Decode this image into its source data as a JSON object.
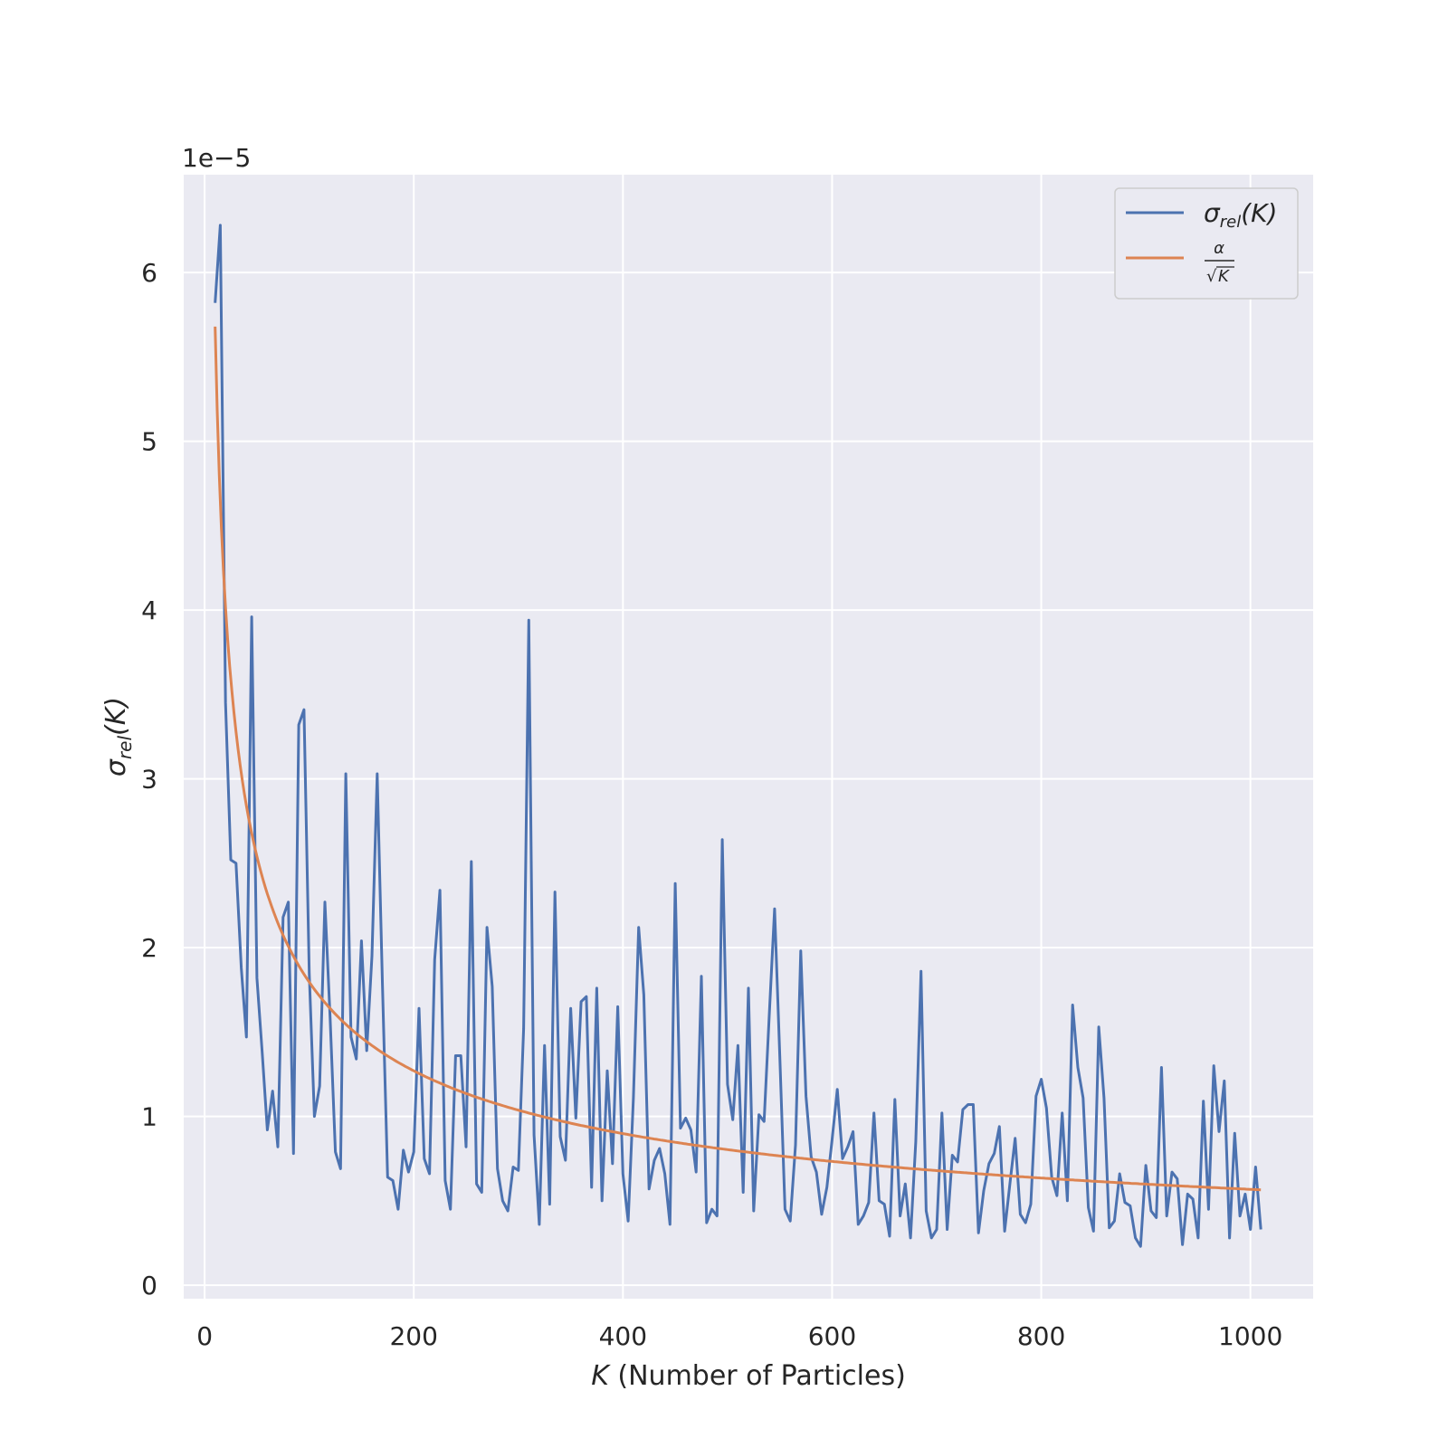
{
  "chart_data": {
    "type": "line",
    "title": "",
    "xlabel_symbol": "K",
    "xlabel_text": " (Number of Particles)",
    "ylabel_symbol": "σ",
    "ylabel_sub": "rel",
    "ylabel_arg": "(K)",
    "y_offset_label": "1e−5",
    "xlim": [
      -20,
      1060
    ],
    "ylim": [
      -0.08,
      6.58
    ],
    "xticks": [
      0,
      200,
      400,
      600,
      800,
      1000
    ],
    "xtick_labels": [
      "0",
      "200",
      "400",
      "600",
      "800",
      "1000"
    ],
    "yticks": [
      0,
      1,
      2,
      3,
      4,
      5,
      6
    ],
    "ytick_labels": [
      "0",
      "1",
      "2",
      "3",
      "4",
      "5",
      "6"
    ],
    "grid": true,
    "legend_position": "top-right",
    "colors": {
      "series_1": "#4c72b0",
      "series_2": "#dd8452",
      "plot_bg": "#eaeaf2",
      "grid": "#ffffff"
    },
    "series": [
      {
        "name_symbol": "σ",
        "name_sub": "rel",
        "name_arg": "(K)",
        "color": "#4c72b0",
        "x": [
          10,
          15,
          20,
          25,
          30,
          35,
          40,
          45,
          50,
          55,
          60,
          65,
          70,
          75,
          80,
          85,
          90,
          95,
          100,
          105,
          110,
          115,
          120,
          125,
          130,
          135,
          140,
          145,
          150,
          155,
          160,
          165,
          170,
          175,
          180,
          185,
          190,
          195,
          200,
          205,
          210,
          215,
          220,
          225,
          230,
          235,
          240,
          245,
          250,
          255,
          260,
          265,
          270,
          275,
          280,
          285,
          290,
          295,
          300,
          305,
          310,
          315,
          320,
          325,
          330,
          335,
          340,
          345,
          350,
          355,
          360,
          365,
          370,
          375,
          380,
          385,
          390,
          395,
          400,
          405,
          410,
          415,
          420,
          425,
          430,
          435,
          440,
          445,
          450,
          455,
          460,
          465,
          470,
          475,
          480,
          485,
          490,
          495,
          500,
          505,
          510,
          515,
          520,
          525,
          530,
          535,
          540,
          545,
          550,
          555,
          560,
          565,
          570,
          575,
          580,
          585,
          590,
          595,
          600,
          605,
          610,
          615,
          620,
          625,
          630,
          635,
          640,
          645,
          650,
          655,
          660,
          665,
          670,
          675,
          680,
          685,
          690,
          695,
          700,
          705,
          710,
          715,
          720,
          725,
          730,
          735,
          740,
          745,
          750,
          755,
          760,
          765,
          770,
          775,
          780,
          785,
          790,
          795,
          800,
          805,
          810,
          815,
          820,
          825,
          830,
          835,
          840,
          845,
          850,
          855,
          860,
          865,
          870,
          875,
          880,
          885,
          890,
          895,
          900,
          905,
          910,
          915,
          920,
          925,
          930,
          935,
          940,
          945,
          950,
          955,
          960,
          965,
          970,
          975,
          980,
          985,
          990,
          995,
          1000,
          1005,
          1010
        ],
        "y": [
          5.82,
          6.28,
          3.45,
          2.52,
          2.5,
          1.88,
          1.47,
          3.96,
          1.82,
          1.38,
          0.92,
          1.15,
          0.82,
          2.18,
          2.27,
          0.78,
          3.32,
          3.41,
          1.85,
          1.0,
          1.18,
          2.27,
          1.58,
          0.79,
          0.69,
          3.03,
          1.47,
          1.34,
          2.04,
          1.39,
          1.95,
          3.03,
          1.78,
          0.64,
          0.62,
          0.45,
          0.8,
          0.67,
          0.79,
          1.64,
          0.75,
          0.66,
          1.93,
          2.34,
          0.62,
          0.45,
          1.36,
          1.36,
          0.82,
          2.51,
          0.6,
          0.55,
          2.12,
          1.77,
          0.69,
          0.5,
          0.44,
          0.7,
          0.68,
          1.52,
          3.94,
          0.89,
          0.36,
          1.42,
          0.48,
          2.33,
          0.88,
          0.74,
          1.64,
          0.99,
          1.68,
          1.71,
          0.58,
          1.76,
          0.5,
          1.27,
          0.72,
          1.65,
          0.66,
          0.38,
          1.11,
          2.12,
          1.72,
          0.57,
          0.74,
          0.81,
          0.66,
          0.36,
          2.38,
          0.93,
          0.99,
          0.92,
          0.67,
          1.83,
          0.37,
          0.45,
          0.41,
          2.64,
          1.19,
          0.98,
          1.42,
          0.55,
          1.76,
          0.44,
          1.01,
          0.97,
          1.61,
          2.23,
          1.35,
          0.45,
          0.38,
          0.83,
          1.98,
          1.12,
          0.76,
          0.67,
          0.42,
          0.58,
          0.86,
          1.16,
          0.75,
          0.82,
          0.91,
          0.36,
          0.41,
          0.49,
          1.02,
          0.5,
          0.48,
          0.29,
          1.1,
          0.41,
          0.6,
          0.28,
          0.85,
          1.86,
          0.44,
          0.28,
          0.33,
          1.02,
          0.33,
          0.77,
          0.73,
          1.04,
          1.07,
          1.07,
          0.31,
          0.56,
          0.72,
          0.78,
          0.94,
          0.32,
          0.6,
          0.87,
          0.42,
          0.37,
          0.48,
          1.12,
          1.22,
          1.05,
          0.64,
          0.53,
          1.02,
          0.5,
          1.66,
          1.29,
          1.11,
          0.46,
          0.32,
          1.53,
          1.11,
          0.34,
          0.38,
          0.66,
          0.49,
          0.47,
          0.28,
          0.23,
          0.71,
          0.44,
          0.4,
          1.29,
          0.41,
          0.67,
          0.63,
          0.24,
          0.54,
          0.51,
          0.28,
          1.09,
          0.45,
          1.3,
          0.91,
          1.21,
          0.28,
          0.9,
          0.41,
          0.54,
          0.33,
          0.7,
          0.33
        ]
      },
      {
        "name_num": "α",
        "name_den_root": "√",
        "name_den_var": "K",
        "color": "#dd8452",
        "formula_coefficient": 17.96,
        "x_range": [
          10,
          1010
        ]
      }
    ]
  }
}
